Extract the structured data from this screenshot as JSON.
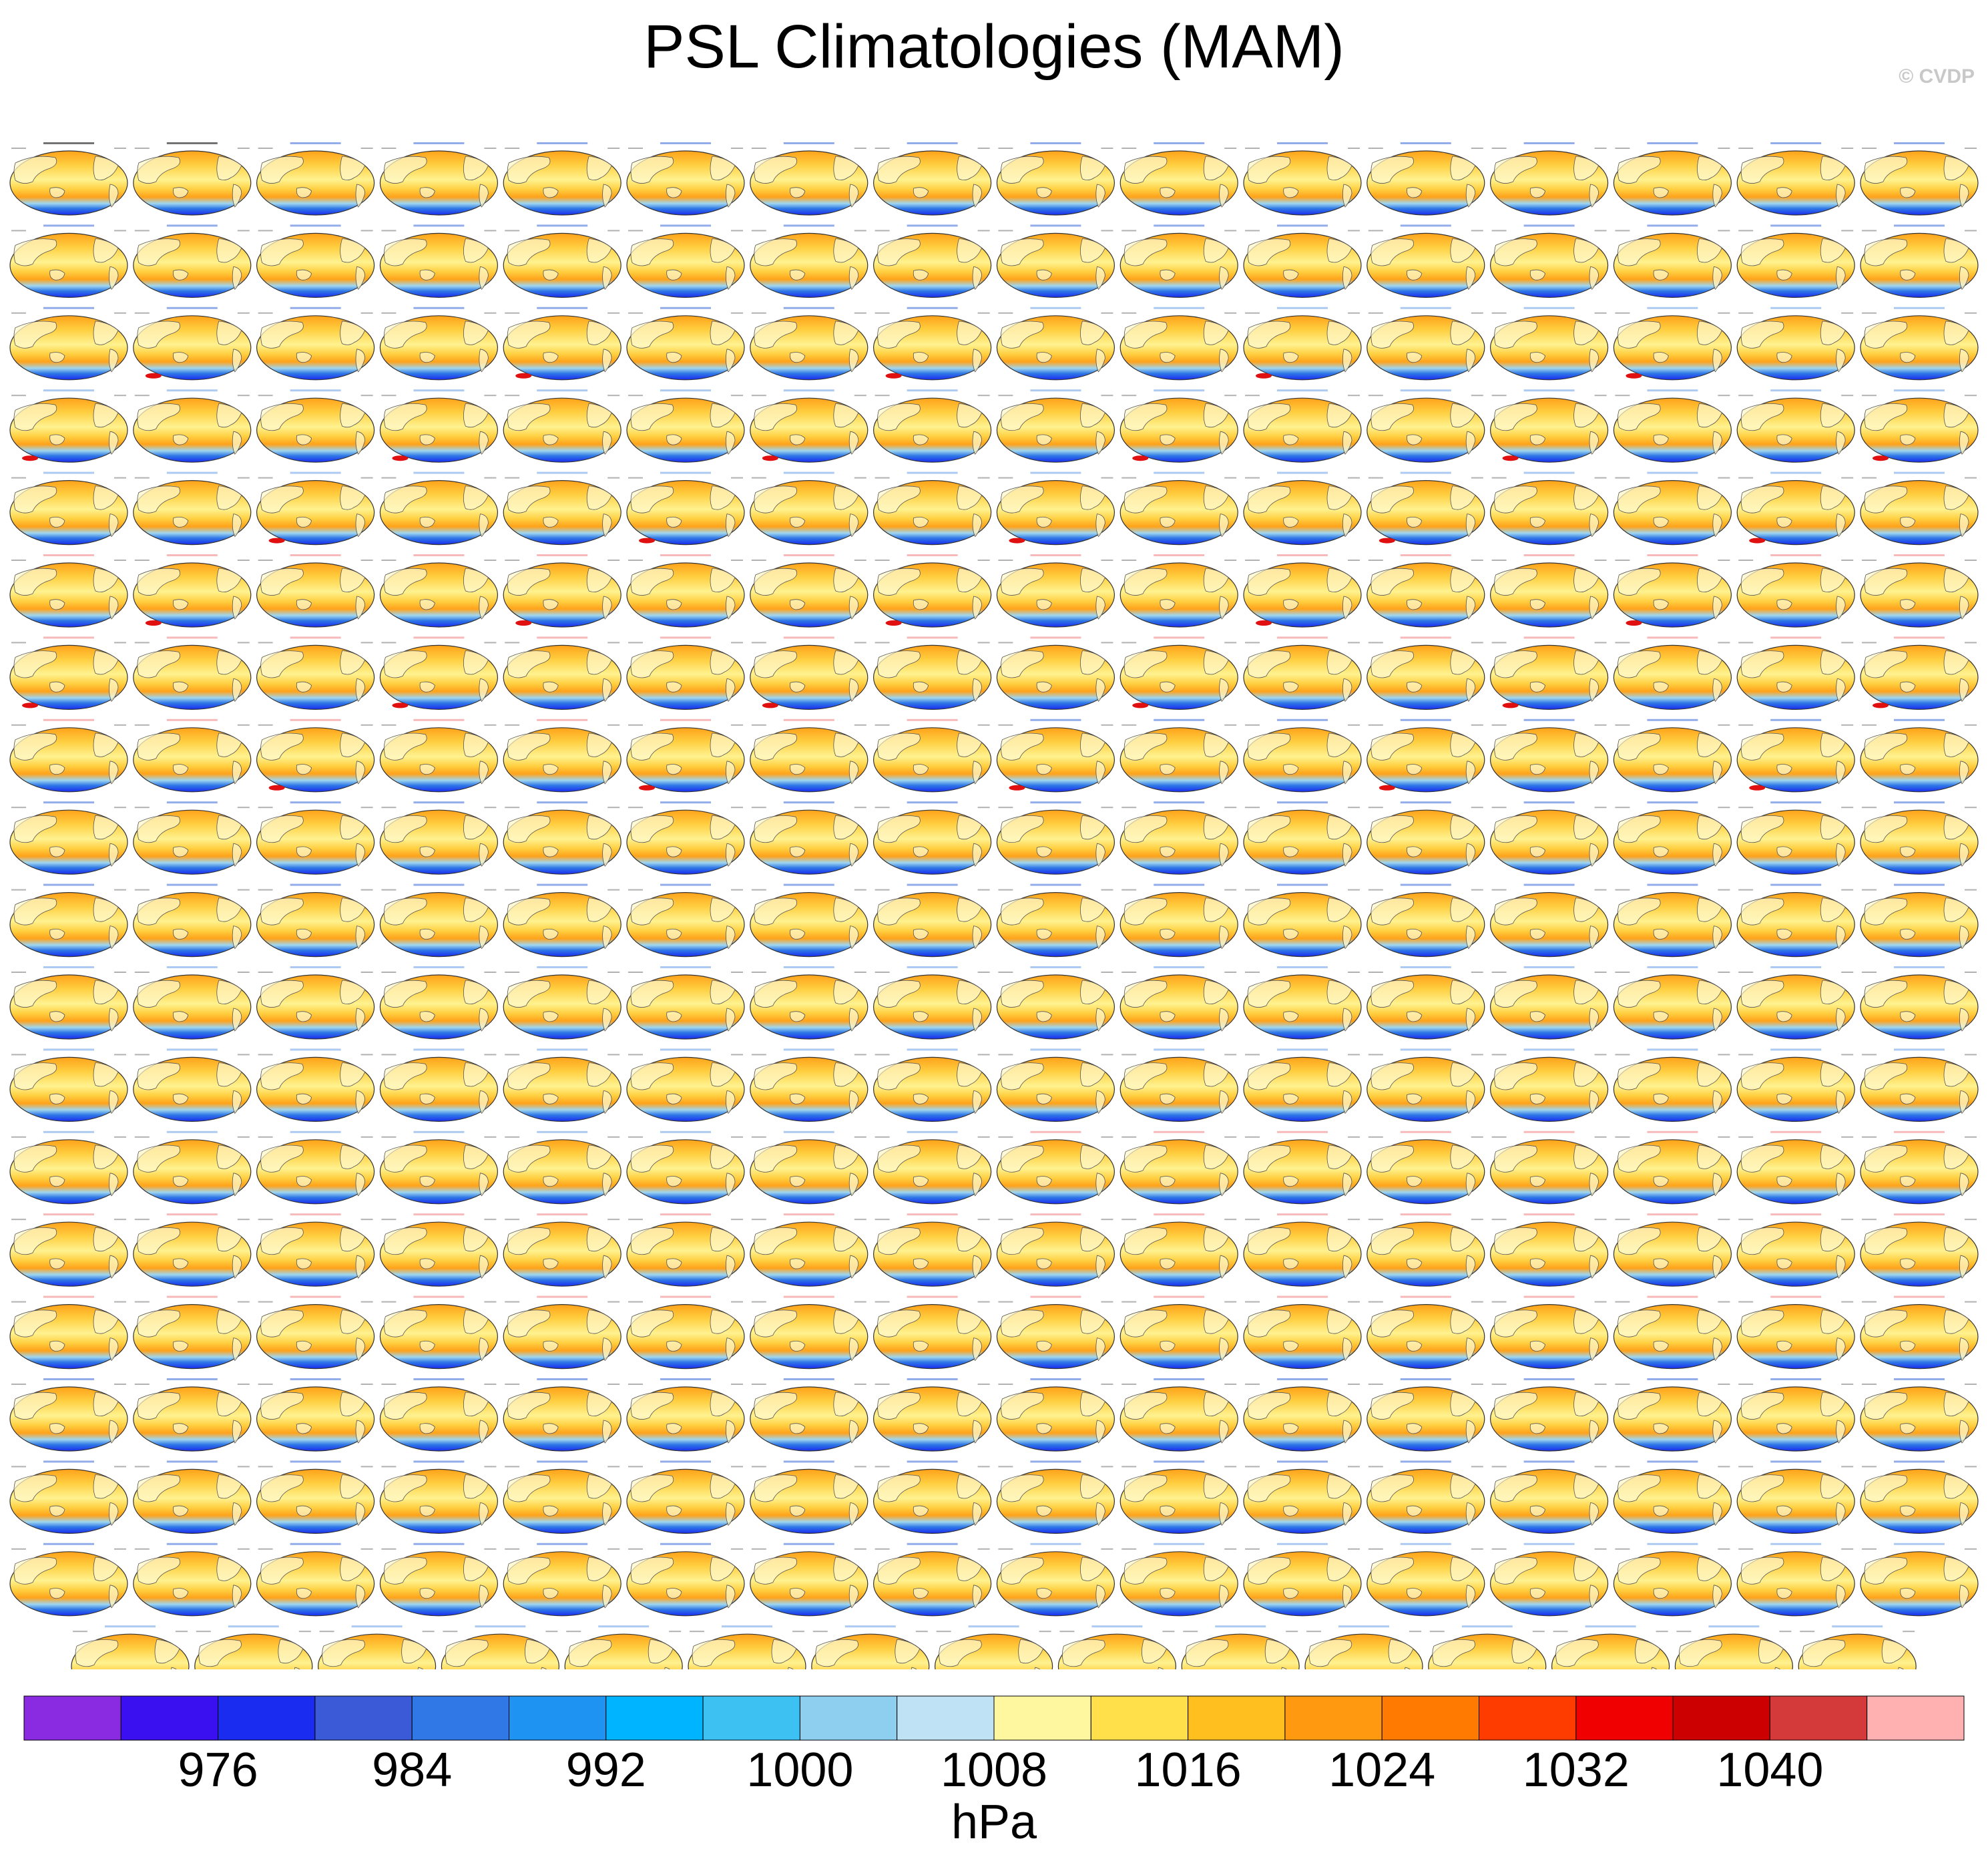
{
  "title": "PSL Climatologies (MAM)",
  "credit": "© CVDP",
  "units": "hPa",
  "chart_data": {
    "type": "heatmap",
    "description_kind": "small-multiple global maps of mean sea-level pressure",
    "variable": "PSL",
    "season": "MAM",
    "rows": 19,
    "columns_full_rows": 16,
    "last_row_panels": 15,
    "total_panels": 303,
    "colorbar": {
      "tick_labels": [
        "976",
        "984",
        "992",
        "1000",
        "1008",
        "1016",
        "1024",
        "1032",
        "1040"
      ],
      "levels": [
        976,
        980,
        984,
        988,
        992,
        996,
        1000,
        1004,
        1008,
        1012,
        1016,
        1020,
        1024,
        1028,
        1032,
        1036,
        1040
      ],
      "colors": [
        "#8a2be2",
        "#3a10f0",
        "#1a2cf0",
        "#3a5ad8",
        "#2f78e6",
        "#1f93f2",
        "#00b4ff",
        "#3cc1f2",
        "#8ecff0",
        "#bfe3f4",
        "#fff7a0",
        "#ffe04a",
        "#ffbf1e",
        "#ff9a10",
        "#ff7a00",
        "#ff3c00",
        "#f00000",
        "#cc0000",
        "#d43a3a",
        "#ffb0b0"
      ]
    },
    "panel_colors": {
      "ocean_mid": "#ffcf40",
      "ocean_high": "#ffa21a",
      "tropics": "#fff290",
      "southern_low": "#2f78e6",
      "southern_deep": "#1a2cf0",
      "land": "#fff7c8",
      "coast": "#555555",
      "title_obs": "#000000",
      "title_model_a": "#3a6ad8",
      "title_model_b": "#6aa0e8",
      "title_model_c": "#f08080"
    }
  }
}
